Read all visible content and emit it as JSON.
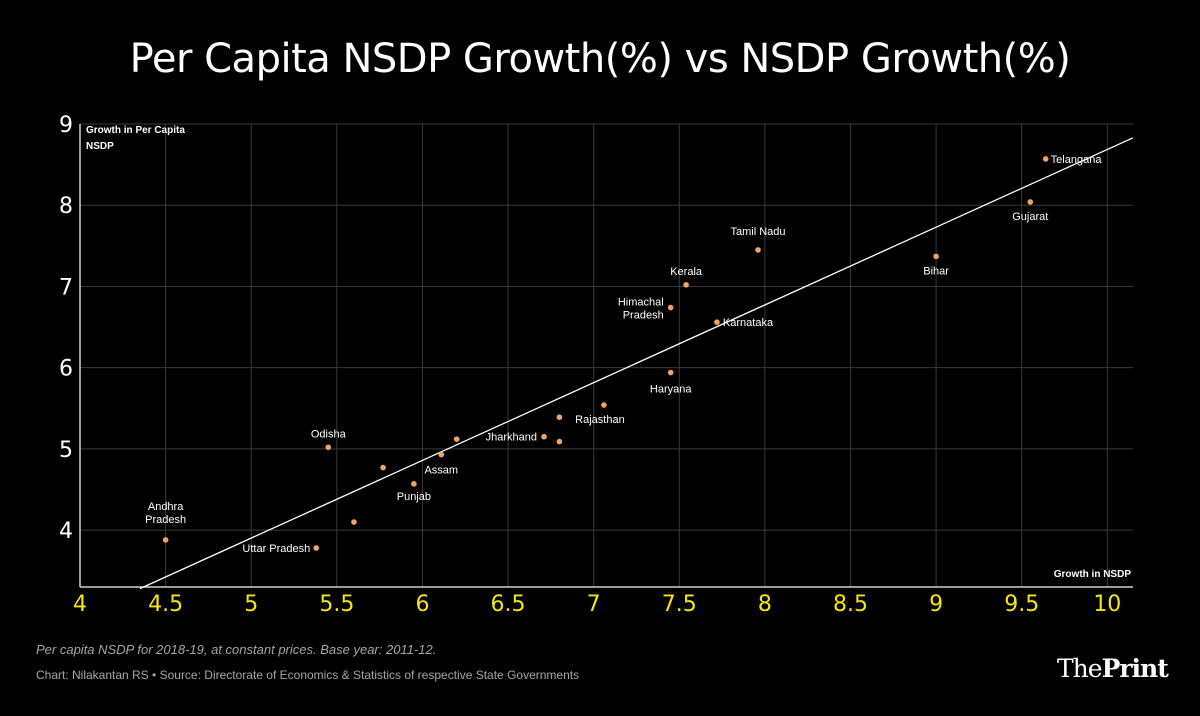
{
  "title": "Per Capita NSDP Growth(%) vs NSDP Growth(%)",
  "footnote": "Per capita NSDP for 2018-19, at constant prices. Base year: 2011-12.",
  "credit": "Chart: Nilakantan RS • Source: Directorate of Economics & Statistics of respective State Governments",
  "brand": {
    "prefix": "The",
    "name": "Print"
  },
  "colors": {
    "background": "#000000",
    "point": "#f4a261",
    "trendline": "#ffffff",
    "x_tick": "#f5e50f",
    "y_tick": "#ffffff",
    "grid": "#3a3a3a"
  },
  "chart_data": {
    "type": "scatter",
    "xlabel": "Growth in NSDP",
    "ylabel_lines": [
      "Growth in Per Capita",
      "NSDP"
    ],
    "xlim": [
      4,
      10.15
    ],
    "ylim": [
      3.3,
      9
    ],
    "xticks": [
      4,
      4.5,
      5,
      5.5,
      6,
      6.5,
      7,
      7.5,
      8,
      8.5,
      9,
      9.5,
      10
    ],
    "xtick_labels": [
      "4",
      "4.5",
      "5",
      "5.5",
      "6",
      "6.5",
      "7",
      "7.5",
      "8",
      "8.5",
      "9",
      "9.5",
      "10"
    ],
    "yticks": [
      4,
      5,
      6,
      7,
      8,
      9
    ],
    "ytick_labels": [
      "4",
      "5",
      "6",
      "7",
      "8",
      "9"
    ],
    "grid": true,
    "points": [
      {
        "x": 4.5,
        "y": 3.88,
        "label_lines": [
          "Andhra",
          "Pradesh"
        ]
      },
      {
        "x": 5.38,
        "y": 3.78,
        "label_lines": [
          "Uttar Pradesh"
        ]
      },
      {
        "x": 5.6,
        "y": 4.1,
        "label_lines": []
      },
      {
        "x": 5.45,
        "y": 5.02,
        "label_lines": [
          "Odisha"
        ]
      },
      {
        "x": 5.77,
        "y": 4.77,
        "label_lines": []
      },
      {
        "x": 5.95,
        "y": 4.57,
        "label_lines": [
          "Punjab"
        ]
      },
      {
        "x": 6.11,
        "y": 4.93,
        "label_lines": [
          "Assam"
        ]
      },
      {
        "x": 6.2,
        "y": 5.12,
        "label_lines": []
      },
      {
        "x": 6.71,
        "y": 5.15,
        "label_lines": [
          "Jharkhand"
        ]
      },
      {
        "x": 6.8,
        "y": 5.39,
        "label_lines": []
      },
      {
        "x": 6.8,
        "y": 5.09,
        "label_lines": []
      },
      {
        "x": 7.06,
        "y": 5.54,
        "label_lines": [
          "Rajasthan"
        ]
      },
      {
        "x": 7.45,
        "y": 5.94,
        "label_lines": [
          "Haryana"
        ]
      },
      {
        "x": 7.45,
        "y": 6.74,
        "label_lines": [
          "Himachal",
          "Pradesh"
        ]
      },
      {
        "x": 7.72,
        "y": 6.56,
        "label_lines": [
          "Karnataka"
        ]
      },
      {
        "x": 7.54,
        "y": 7.02,
        "label_lines": [
          "Kerala"
        ]
      },
      {
        "x": 7.96,
        "y": 7.45,
        "label_lines": [
          "Tamil Nadu"
        ]
      },
      {
        "x": 9.0,
        "y": 7.37,
        "label_lines": [
          "Bihar"
        ]
      },
      {
        "x": 9.55,
        "y": 8.04,
        "label_lines": [
          "Gujarat"
        ]
      },
      {
        "x": 9.64,
        "y": 8.57,
        "label_lines": [
          "Telangana"
        ]
      }
    ],
    "trendline": {
      "x": [
        4.35,
        10.15
      ],
      "y": [
        3.28,
        8.83
      ]
    }
  }
}
